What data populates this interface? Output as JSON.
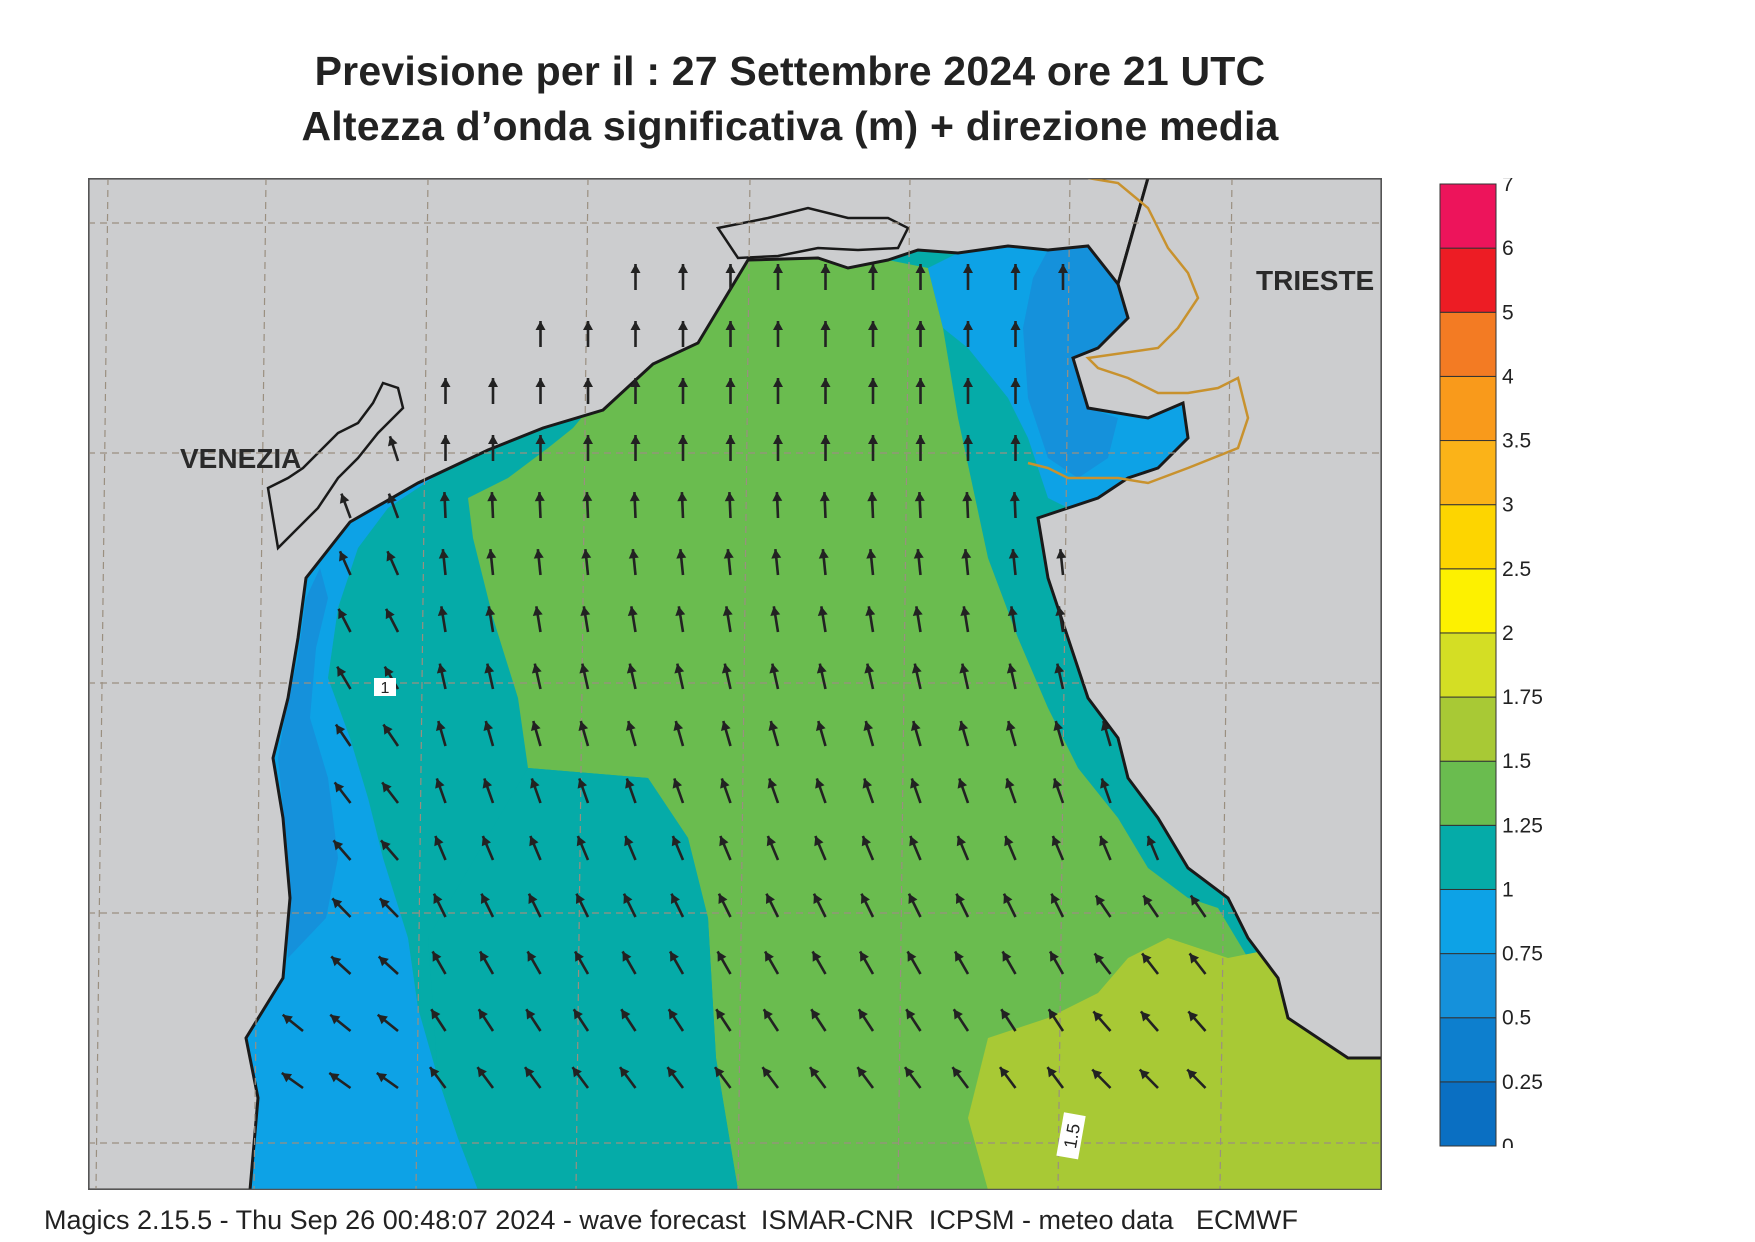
{
  "title_line1": "Previsione per il  :  27 Settembre 2024   ore 21 UTC",
  "title_line2": "Altezza d’onda significativa (m) + direzione media",
  "footer": "Magics 2.15.5 - Thu Sep 26 00:48:07 2024 - wave forecast  ISMAR-CNR  ICPSM - meteo data   ECMWF",
  "cities": {
    "venezia": "VENEZIA",
    "trieste": "TRIESTE"
  },
  "contour_labels": {
    "one": "1",
    "one_five": "1.5"
  },
  "legend": {
    "classes": [
      {
        "from": 0,
        "to": 0.25,
        "color": "#0a6fc2"
      },
      {
        "from": 0.25,
        "to": 0.5,
        "color": "#0d7fce"
      },
      {
        "from": 0.5,
        "to": 0.75,
        "color": "#1591db"
      },
      {
        "from": 0.75,
        "to": 1,
        "color": "#0da2e6"
      },
      {
        "from": 1,
        "to": 1.25,
        "color": "#05aba8"
      },
      {
        "from": 1.25,
        "to": 1.5,
        "color": "#6abc4f"
      },
      {
        "from": 1.5,
        "to": 1.75,
        "color": "#a8c935"
      },
      {
        "from": 1.75,
        "to": 2,
        "color": "#d4de24"
      },
      {
        "from": 2,
        "to": 2.5,
        "color": "#fdf100"
      },
      {
        "from": 2.5,
        "to": 3,
        "color": "#fdd500"
      },
      {
        "from": 3,
        "to": 3.5,
        "color": "#fbb318"
      },
      {
        "from": 3.5,
        "to": 4,
        "color": "#f99a1b"
      },
      {
        "from": 4,
        "to": 5,
        "color": "#f37b23"
      },
      {
        "from": 5,
        "to": 6,
        "color": "#ed1c24"
      },
      {
        "from": 6,
        "to": 7,
        "color": "#ed145b"
      }
    ],
    "tick_labels": [
      "0",
      "0.25",
      "0.5",
      "0.75",
      "1",
      "1.25",
      "1.5",
      "1.75",
      "2",
      "2.5",
      "3",
      "3.5",
      "4",
      "5",
      "6",
      "7"
    ]
  },
  "colors": {
    "land": "#cccdcf",
    "coast": "#1a1a1a",
    "border": "#c8922e",
    "arrow": "#222222",
    "grid": "#9a8f80"
  },
  "icons": {
    "wave_direction": "arrow-icon"
  }
}
